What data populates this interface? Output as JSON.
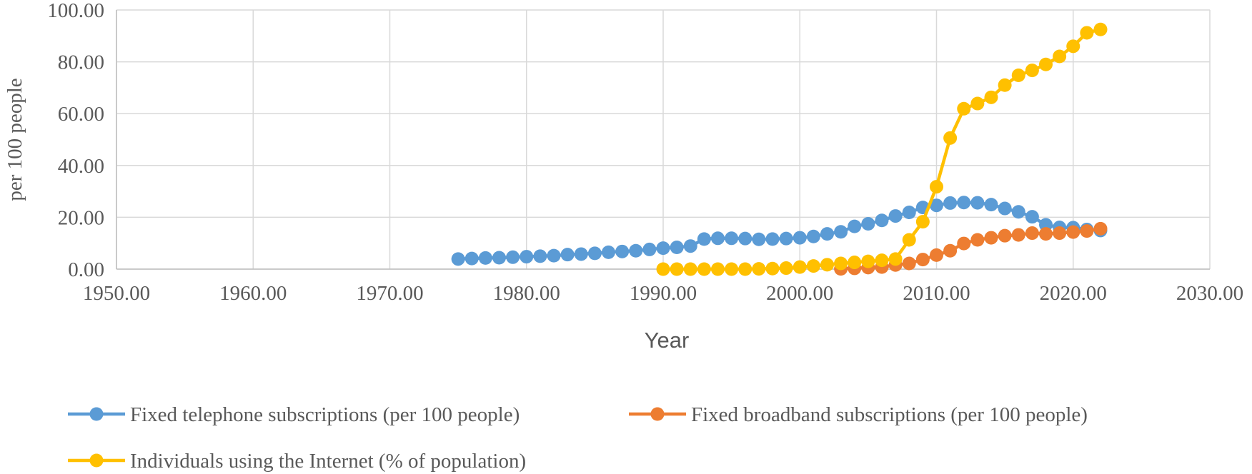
{
  "chart_data": {
    "type": "scatter",
    "title": "",
    "xlabel": "Year",
    "ylabel": "per 100 people",
    "xlim": [
      1950,
      2030
    ],
    "ylim": [
      0,
      100
    ],
    "x_ticks": [
      "1950.00",
      "1960.00",
      "1970.00",
      "1980.00",
      "1990.00",
      "2000.00",
      "2010.00",
      "2020.00",
      "2030.00"
    ],
    "y_ticks": [
      "0.00",
      "20.00",
      "40.00",
      "60.00",
      "80.00",
      "100.00"
    ],
    "grid": "vertical and horizontal",
    "legend_position": "bottom",
    "series": [
      {
        "name": "Fixed telephone subscriptions (per 100 people)",
        "color": "#5B9BD5",
        "x": [
          1975,
          1976,
          1977,
          1978,
          1979,
          1980,
          1981,
          1982,
          1983,
          1984,
          1985,
          1986,
          1987,
          1988,
          1989,
          1990,
          1991,
          1992,
          1993,
          1994,
          1995,
          1996,
          1997,
          1998,
          1999,
          2000,
          2001,
          2002,
          2003,
          2004,
          2005,
          2006,
          2007,
          2008,
          2009,
          2010,
          2011,
          2012,
          2013,
          2014,
          2015,
          2016,
          2017,
          2018,
          2019,
          2020,
          2021,
          2022
        ],
        "y": [
          3.9,
          4.1,
          4.3,
          4.4,
          4.6,
          4.8,
          5.0,
          5.2,
          5.6,
          5.8,
          6.1,
          6.5,
          6.8,
          7.1,
          7.6,
          8.1,
          8.4,
          8.9,
          11.6,
          11.9,
          11.9,
          11.8,
          11.5,
          11.6,
          11.8,
          12.1,
          12.6,
          13.6,
          14.4,
          16.5,
          17.5,
          18.8,
          20.5,
          21.9,
          23.8,
          24.6,
          25.5,
          25.7,
          25.6,
          24.9,
          23.4,
          22.1,
          20.2,
          17.1,
          16.1,
          16.0,
          15.3,
          14.9
        ]
      },
      {
        "name": "Fixed broadband subscriptions (per 100 people)",
        "color": "#ED7D31",
        "x": [
          2003,
          2004,
          2005,
          2006,
          2007,
          2008,
          2009,
          2010,
          2011,
          2012,
          2013,
          2014,
          2015,
          2016,
          2017,
          2018,
          2019,
          2020,
          2021,
          2022
        ],
        "y": [
          0.1,
          0.3,
          0.6,
          0.8,
          1.6,
          2.2,
          3.7,
          5.4,
          7.1,
          9.9,
          11.3,
          12.1,
          12.9,
          13.2,
          13.9,
          13.6,
          13.9,
          14.3,
          14.7,
          15.6
        ]
      },
      {
        "name": "Individuals using the Internet (% of population)",
        "color": "#FFC000",
        "x": [
          1990,
          1991,
          1992,
          1993,
          1994,
          1995,
          1996,
          1997,
          1998,
          1999,
          2000,
          2001,
          2002,
          2003,
          2004,
          2005,
          2006,
          2007,
          2008,
          2009,
          2010,
          2011,
          2012,
          2013,
          2014,
          2015,
          2016,
          2017,
          2018,
          2019,
          2020,
          2021,
          2022
        ],
        "y": [
          0.0,
          0.0,
          0.0,
          0.0,
          0.0,
          0.0,
          0.0,
          0.1,
          0.2,
          0.4,
          0.8,
          1.2,
          1.7,
          2.2,
          2.6,
          3.0,
          3.4,
          3.9,
          11.3,
          18.3,
          31.8,
          50.6,
          61.9,
          63.9,
          66.3,
          71.0,
          74.8,
          76.7,
          79.0,
          82.1,
          86.0,
          91.2,
          92.5
        ]
      }
    ]
  }
}
